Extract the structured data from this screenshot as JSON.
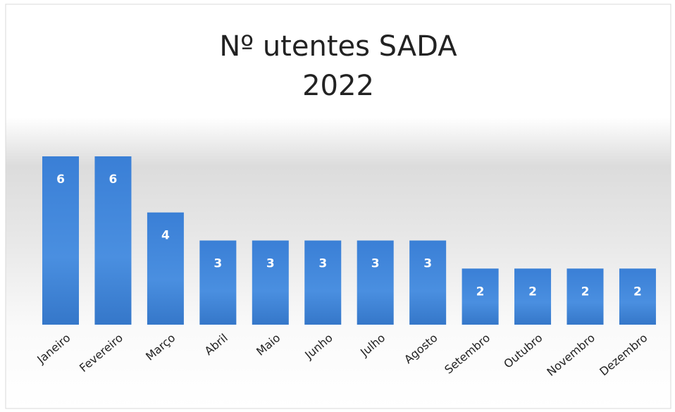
{
  "chart_data": {
    "type": "bar",
    "title": "Nº utentes SADA",
    "subtitle": "2022",
    "categories": [
      "Janeiro",
      "Fevereiro",
      "Março",
      "Abril",
      "Maio",
      "Junho",
      "Julho",
      "Agosto",
      "Setembro",
      "Outubro",
      "Novembro",
      "Dezembro"
    ],
    "values": [
      6,
      6,
      4,
      3,
      3,
      3,
      3,
      3,
      2,
      2,
      2,
      2
    ],
    "color": "#3d82d6"
  }
}
